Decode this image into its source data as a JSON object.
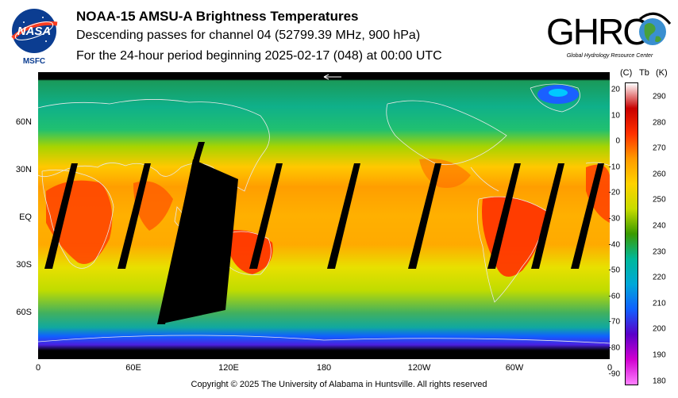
{
  "header": {
    "title": "NOAA-15 AMSU-A Brightness Temperatures",
    "subtitle": "Descending passes for channel 04 (52799.39 MHz, 900 hPa)",
    "period": "For the 24-hour period beginning 2025-02-17 (048) at 00:00 UTC"
  },
  "logos": {
    "nasa_text": "NASA",
    "nasa_sub": "MSFC",
    "ghrc_text": "GHRC",
    "ghrc_sub": "Global Hydrology Resource Center"
  },
  "map": {
    "lat_labels": [
      "60N",
      "30N",
      "EQ",
      "30S",
      "60S"
    ],
    "lon_labels": [
      "0",
      "60E",
      "120E",
      "180",
      "120W",
      "60W",
      "0"
    ]
  },
  "colorbar": {
    "unit_c": "(C)",
    "unit_tb": "Tb",
    "unit_k": "(K)",
    "celsius_ticks": [
      "20",
      "10",
      "0",
      "-10",
      "-20",
      "-30",
      "-40",
      "-50",
      "-60",
      "-70",
      "-80",
      "-90"
    ],
    "kelvin_ticks": [
      "290",
      "280",
      "270",
      "260",
      "250",
      "240",
      "230",
      "220",
      "210",
      "200",
      "190",
      "180"
    ],
    "colors": [
      "#ffffff",
      "#c80000",
      "#ff3000",
      "#ff9a00",
      "#ffd200",
      "#c8dc00",
      "#3a9a00",
      "#00b89a",
      "#00a8d8",
      "#1060ff",
      "#5a00c8",
      "#d000d0",
      "#ff80ff"
    ]
  },
  "footer": {
    "copyright": "Copyright © 2025 The University of Alabama in Huntsville.  All rights reserved"
  }
}
